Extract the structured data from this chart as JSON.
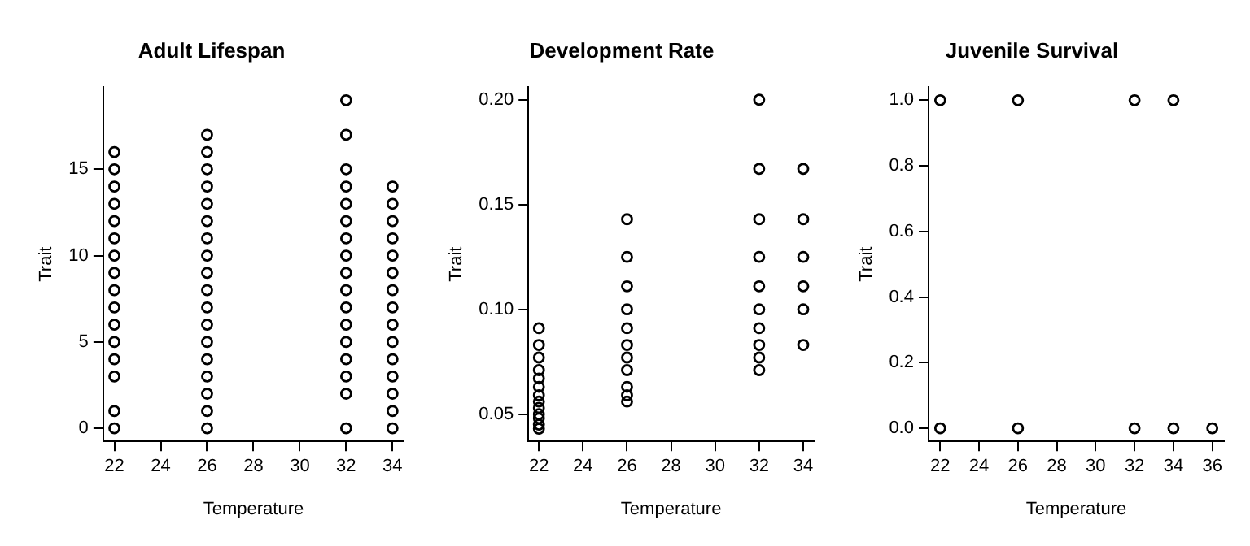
{
  "chart_data": [
    {
      "type": "scatter",
      "title": "Adult Lifespan",
      "xlabel": "Temperature",
      "ylabel": "Trait",
      "marker": "circle",
      "grid": false,
      "legend": false,
      "xlim": [
        21.52,
        34.48
      ],
      "xticks": [
        22,
        24,
        26,
        28,
        30,
        32,
        34
      ],
      "ylim": [
        -0.76,
        19.76
      ],
      "yticks": [
        0,
        5,
        10,
        15
      ],
      "series": [
        {
          "color": "#000000",
          "x": [
            22,
            22,
            22,
            22,
            22,
            22,
            22,
            22,
            22,
            22,
            22,
            22,
            22,
            22,
            22,
            22,
            26,
            26,
            26,
            26,
            26,
            26,
            26,
            26,
            26,
            26,
            26,
            26,
            26,
            26,
            26,
            26,
            26,
            26,
            32,
            32,
            32,
            32,
            32,
            32,
            32,
            32,
            32,
            32,
            32,
            32,
            32,
            32,
            32,
            32,
            32,
            34,
            34,
            34,
            34,
            34,
            34,
            34,
            34,
            34,
            34,
            34,
            34,
            34,
            34,
            34
          ],
          "values": [
            0,
            1,
            3,
            4,
            5,
            6,
            7,
            8,
            9,
            10,
            11,
            12,
            13,
            14,
            15,
            16,
            0,
            1,
            2,
            3,
            4,
            5,
            6,
            7,
            8,
            9,
            10,
            11,
            12,
            13,
            14,
            15,
            16,
            17,
            0,
            2,
            3,
            4,
            5,
            6,
            7,
            8,
            9,
            10,
            11,
            12,
            13,
            14,
            15,
            17,
            19,
            0,
            1,
            2,
            3,
            4,
            5,
            6,
            7,
            8,
            9,
            10,
            11,
            12,
            13,
            14
          ]
        }
      ]
    },
    {
      "type": "scatter",
      "title": "Development Rate",
      "xlabel": "Temperature",
      "ylabel": "Trait",
      "marker": "circle",
      "grid": false,
      "legend": false,
      "xlim": [
        21.52,
        34.48
      ],
      "xticks": [
        22,
        24,
        26,
        28,
        30,
        32,
        34
      ],
      "ylim": [
        0.037,
        0.206
      ],
      "yticks": [
        {
          "value": 0.05,
          "label": "0.05"
        },
        {
          "value": 0.1,
          "label": "0.10"
        },
        {
          "value": 0.15,
          "label": "0.15"
        },
        {
          "value": 0.2,
          "label": "0.20"
        }
      ],
      "series": [
        {
          "color": "#000000",
          "x": [
            22,
            22,
            22,
            22,
            22,
            22,
            22,
            22,
            22,
            22,
            22,
            22,
            22,
            26,
            26,
            26,
            26,
            26,
            26,
            26,
            26,
            26,
            26,
            26,
            32,
            32,
            32,
            32,
            32,
            32,
            32,
            32,
            32,
            32,
            34,
            34,
            34,
            34,
            34,
            34
          ],
          "values": [
            0.091,
            0.083,
            0.077,
            0.071,
            0.067,
            0.063,
            0.059,
            0.056,
            0.053,
            0.05,
            0.048,
            0.045,
            0.043,
            0.143,
            0.125,
            0.111,
            0.1,
            0.091,
            0.083,
            0.077,
            0.071,
            0.063,
            0.059,
            0.056,
            0.2,
            0.167,
            0.143,
            0.125,
            0.111,
            0.1,
            0.091,
            0.083,
            0.077,
            0.071,
            0.167,
            0.143,
            0.125,
            0.111,
            0.1,
            0.083
          ]
        }
      ]
    },
    {
      "type": "scatter",
      "title": "Juvenile Survival",
      "xlabel": "Temperature",
      "ylabel": "Trait",
      "marker": "circle",
      "grid": false,
      "legend": false,
      "xlim": [
        21.4,
        36.6
      ],
      "xticks": [
        22,
        24,
        26,
        28,
        30,
        32,
        34,
        36
      ],
      "ylim": [
        -0.04,
        1.04
      ],
      "yticks": [
        {
          "value": 0,
          "label": "0.0"
        },
        {
          "value": 0.2,
          "label": "0.2"
        },
        {
          "value": 0.4,
          "label": "0.4"
        },
        {
          "value": 0.6,
          "label": "0.6"
        },
        {
          "value": 0.8,
          "label": "0.8"
        },
        {
          "value": 1,
          "label": "1.0"
        }
      ],
      "series": [
        {
          "color": "#000000",
          "x": [
            22,
            26,
            32,
            34,
            22,
            26,
            32,
            34,
            36
          ],
          "values": [
            1,
            1,
            1,
            1,
            0,
            0,
            0,
            0,
            0
          ]
        }
      ]
    }
  ]
}
